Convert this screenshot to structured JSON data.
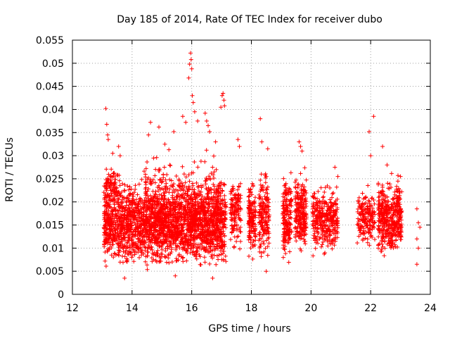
{
  "chart_data": {
    "type": "scatter",
    "title": "Day 185 of 2014, Rate Of TEC Index for receiver dubo",
    "xlabel": "GPS time / hours",
    "ylabel": "ROTI / TECUs",
    "xlim": [
      12,
      24
    ],
    "ylim": [
      0,
      0.055
    ],
    "xticks": [
      12,
      14,
      16,
      18,
      20,
      22,
      24
    ],
    "xtick_labels": [
      "12",
      "14",
      "16",
      "18",
      "20",
      "22",
      "24"
    ],
    "yticks": [
      0,
      0.005,
      0.01,
      0.015,
      0.02,
      0.025,
      0.03,
      0.035,
      0.04,
      0.045,
      0.05,
      0.055
    ],
    "ytick_labels": [
      "0",
      "0.005",
      "0.01",
      "0.015",
      "0.02",
      "0.025",
      "0.03",
      "0.035",
      "0.04",
      "0.045",
      "0.05",
      "0.055"
    ],
    "grid": true,
    "marker": "+",
    "series_color": "#ff0000",
    "series": [
      {
        "name": "ROTI",
        "points": [
          [
            13.12,
            0.0402
          ],
          [
            13.15,
            0.0368
          ],
          [
            13.18,
            0.0345
          ],
          [
            13.2,
            0.0335
          ],
          [
            13.35,
            0.0305
          ],
          [
            13.55,
            0.032
          ],
          [
            13.6,
            0.03
          ],
          [
            13.75,
            0.0035
          ],
          [
            14.55,
            0.0345
          ],
          [
            14.62,
            0.0372
          ],
          [
            14.9,
            0.0362
          ],
          [
            15.1,
            0.0325
          ],
          [
            15.4,
            0.0352
          ],
          [
            15.45,
            0.004
          ],
          [
            15.7,
            0.0385
          ],
          [
            15.8,
            0.0372
          ],
          [
            15.9,
            0.0468
          ],
          [
            15.93,
            0.0498
          ],
          [
            15.96,
            0.0522
          ],
          [
            15.98,
            0.0508
          ],
          [
            16.0,
            0.0488
          ],
          [
            16.02,
            0.043
          ],
          [
            16.05,
            0.0415
          ],
          [
            16.1,
            0.0395
          ],
          [
            16.2,
            0.0375
          ],
          [
            16.45,
            0.0392
          ],
          [
            16.5,
            0.0375
          ],
          [
            16.55,
            0.0365
          ],
          [
            16.6,
            0.0352
          ],
          [
            16.7,
            0.0035
          ],
          [
            16.8,
            0.033
          ],
          [
            16.98,
            0.0405
          ],
          [
            17.02,
            0.043
          ],
          [
            17.05,
            0.0435
          ],
          [
            17.08,
            0.042
          ],
          [
            17.1,
            0.0408
          ],
          [
            17.55,
            0.0335
          ],
          [
            17.6,
            0.032
          ],
          [
            18.3,
            0.038
          ],
          [
            18.35,
            0.033
          ],
          [
            18.55,
            0.0315
          ],
          [
            18.5,
            0.005
          ],
          [
            19.6,
            0.033
          ],
          [
            19.65,
            0.032
          ],
          [
            19.7,
            0.031
          ],
          [
            21.95,
            0.0352
          ],
          [
            22.1,
            0.0385
          ],
          [
            22.4,
            0.032
          ],
          [
            22.0,
            0.03
          ],
          [
            23.55,
            0.0185
          ],
          [
            23.6,
            0.0155
          ],
          [
            23.65,
            0.0145
          ],
          [
            23.55,
            0.012
          ],
          [
            23.6,
            0.01
          ],
          [
            23.55,
            0.0065
          ],
          [
            22.55,
            0.028
          ],
          [
            23.0,
            0.0255
          ],
          [
            20.8,
            0.0275
          ],
          [
            20.9,
            0.0255
          ]
        ]
      }
    ],
    "clusters": [
      {
        "x": [
          13.05,
          17.15
        ],
        "y": [
          0.0045,
          0.026
        ],
        "n": 2300
      },
      {
        "x": [
          14.4,
          17.0
        ],
        "y": [
          0.007,
          0.033
        ],
        "n": 400
      },
      {
        "x": [
          13.1,
          13.6
        ],
        "y": [
          0.018,
          0.029
        ],
        "n": 80
      },
      {
        "x": [
          17.3,
          17.65
        ],
        "y": [
          0.0085,
          0.027
        ],
        "n": 140
      },
      {
        "x": [
          17.9,
          18.15
        ],
        "y": [
          0.006,
          0.027
        ],
        "n": 150
      },
      {
        "x": [
          18.25,
          18.6
        ],
        "y": [
          0.005,
          0.029
        ],
        "n": 170
      },
      {
        "x": [
          19.05,
          19.35
        ],
        "y": [
          0.006,
          0.028
        ],
        "n": 180
      },
      {
        "x": [
          19.45,
          19.85
        ],
        "y": [
          0.0065,
          0.028
        ],
        "n": 230
      },
      {
        "x": [
          20.05,
          20.9
        ],
        "y": [
          0.0075,
          0.025
        ],
        "n": 330
      },
      {
        "x": [
          21.55,
          22.15
        ],
        "y": [
          0.0085,
          0.025
        ],
        "n": 170
      },
      {
        "x": [
          22.25,
          23.05
        ],
        "y": [
          0.006,
          0.027
        ],
        "n": 420
      }
    ]
  }
}
